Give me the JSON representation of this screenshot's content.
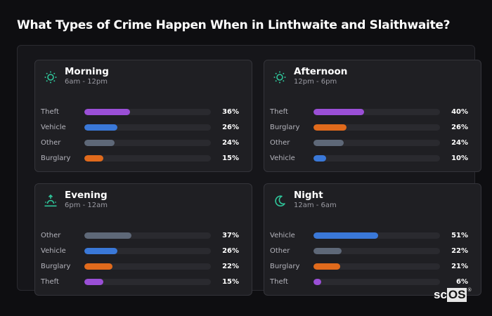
{
  "page": {
    "title": "What Types of Crime Happen When in Linthwaite and Slaithwaite?",
    "logo": {
      "text_a": "sc",
      "text_b": "OS",
      "reg": "®"
    }
  },
  "colors": {
    "Theft": "#9a4fd6",
    "Vehicle": "#3a78d8",
    "Other": "#5e6878",
    "Burglary": "#e06a1c",
    "accent": "#2fc59a"
  },
  "cards": [
    {
      "title": "Morning",
      "subtitle": "6am - 12pm",
      "icon": "sun-icon",
      "rows": [
        {
          "label": "Theft",
          "value": 36,
          "pct": "36%"
        },
        {
          "label": "Vehicle",
          "value": 26,
          "pct": "26%"
        },
        {
          "label": "Other",
          "value": 24,
          "pct": "24%"
        },
        {
          "label": "Burglary",
          "value": 15,
          "pct": "15%"
        }
      ]
    },
    {
      "title": "Afternoon",
      "subtitle": "12pm - 6pm",
      "icon": "sun-icon",
      "rows": [
        {
          "label": "Theft",
          "value": 40,
          "pct": "40%"
        },
        {
          "label": "Burglary",
          "value": 26,
          "pct": "26%"
        },
        {
          "label": "Other",
          "value": 24,
          "pct": "24%"
        },
        {
          "label": "Vehicle",
          "value": 10,
          "pct": "10%"
        }
      ]
    },
    {
      "title": "Evening",
      "subtitle": "6pm - 12am",
      "icon": "sunset-icon",
      "rows": [
        {
          "label": "Other",
          "value": 37,
          "pct": "37%"
        },
        {
          "label": "Vehicle",
          "value": 26,
          "pct": "26%"
        },
        {
          "label": "Burglary",
          "value": 22,
          "pct": "22%"
        },
        {
          "label": "Theft",
          "value": 15,
          "pct": "15%"
        }
      ]
    },
    {
      "title": "Night",
      "subtitle": "12am - 6am",
      "icon": "moon-icon",
      "rows": [
        {
          "label": "Vehicle",
          "value": 51,
          "pct": "51%"
        },
        {
          "label": "Other",
          "value": 22,
          "pct": "22%"
        },
        {
          "label": "Burglary",
          "value": 21,
          "pct": "21%"
        },
        {
          "label": "Theft",
          "value": 6,
          "pct": "6%"
        }
      ]
    }
  ],
  "chart_data": {
    "type": "bar",
    "title": "What Types of Crime Happen When in Linthwaite and Slaithwaite?",
    "orientation": "horizontal",
    "xlabel": "",
    "ylabel": "",
    "xlim": [
      0,
      100
    ],
    "grid": false,
    "legend": "none",
    "panels": [
      {
        "title": "Morning",
        "subtitle": "6am - 12pm",
        "categories": [
          "Theft",
          "Vehicle",
          "Other",
          "Burglary"
        ],
        "values": [
          36,
          26,
          24,
          15
        ]
      },
      {
        "title": "Afternoon",
        "subtitle": "12pm - 6pm",
        "categories": [
          "Theft",
          "Burglary",
          "Other",
          "Vehicle"
        ],
        "values": [
          40,
          26,
          24,
          10
        ]
      },
      {
        "title": "Evening",
        "subtitle": "6pm - 12am",
        "categories": [
          "Other",
          "Vehicle",
          "Burglary",
          "Theft"
        ],
        "values": [
          37,
          26,
          22,
          15
        ]
      },
      {
        "title": "Night",
        "subtitle": "12am - 6am",
        "categories": [
          "Vehicle",
          "Other",
          "Burglary",
          "Theft"
        ],
        "values": [
          51,
          22,
          21,
          6
        ]
      }
    ]
  }
}
